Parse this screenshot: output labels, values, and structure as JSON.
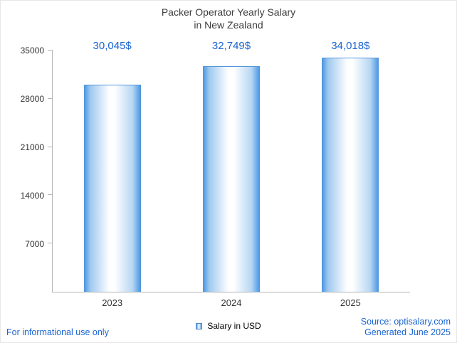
{
  "title": {
    "line1": "Packer Operator Yearly Salary",
    "line2": "in New Zealand"
  },
  "chart_data": {
    "type": "bar",
    "title": "Packer Operator Yearly Salary in New Zealand",
    "categories": [
      "2023",
      "2024",
      "2025"
    ],
    "values": [
      30045,
      32749,
      34018
    ],
    "value_labels": [
      "30,045$",
      "32,749$",
      "34,018$"
    ],
    "series": [
      {
        "name": "Salary in USD",
        "values": [
          30045,
          32749,
          34018
        ]
      }
    ],
    "xlabel": "",
    "ylabel": "",
    "ylim": [
      0,
      35000
    ],
    "yticks": [
      7000,
      14000,
      21000,
      28000,
      35000
    ],
    "grid": false,
    "legend_position": "bottom"
  },
  "legend": {
    "label": "Salary in USD"
  },
  "footer": {
    "disclaimer": "For informational use only",
    "source": "Source: optisalary.com",
    "generated": "Generated June 2025"
  },
  "colors": {
    "accent": "#1a64d2",
    "bar_edge": "#4f9ae4",
    "bar_center": "#ffffff",
    "axis": "#b5b5b5",
    "text": "#333333",
    "title": "#3d3d3d"
  }
}
